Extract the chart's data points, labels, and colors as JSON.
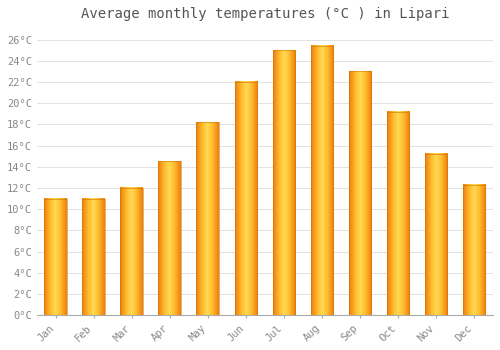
{
  "title": "Average monthly temperatures (°C ) in Lipari",
  "months": [
    "Jan",
    "Feb",
    "Mar",
    "Apr",
    "May",
    "Jun",
    "Jul",
    "Aug",
    "Sep",
    "Oct",
    "Nov",
    "Dec"
  ],
  "temperatures": [
    11,
    11,
    12,
    14.5,
    18.2,
    22,
    25,
    25.4,
    23,
    19.2,
    15.2,
    12.3
  ],
  "bar_color_left": "#F5A623",
  "bar_color_center": "#FFD050",
  "bar_color_right": "#F5A623",
  "background_color": "#FFFFFF",
  "grid_color": "#dddddd",
  "ylim": [
    0,
    27
  ],
  "yticks": [
    0,
    2,
    4,
    6,
    8,
    10,
    12,
    14,
    16,
    18,
    20,
    22,
    24,
    26
  ],
  "ytick_labels": [
    "0°C",
    "2°C",
    "4°C",
    "6°C",
    "8°C",
    "10°C",
    "12°C",
    "14°C",
    "16°C",
    "18°C",
    "20°C",
    "22°C",
    "24°C",
    "26°C"
  ],
  "title_fontsize": 10,
  "tick_fontsize": 7.5,
  "font_family": "monospace",
  "bar_width": 0.6
}
